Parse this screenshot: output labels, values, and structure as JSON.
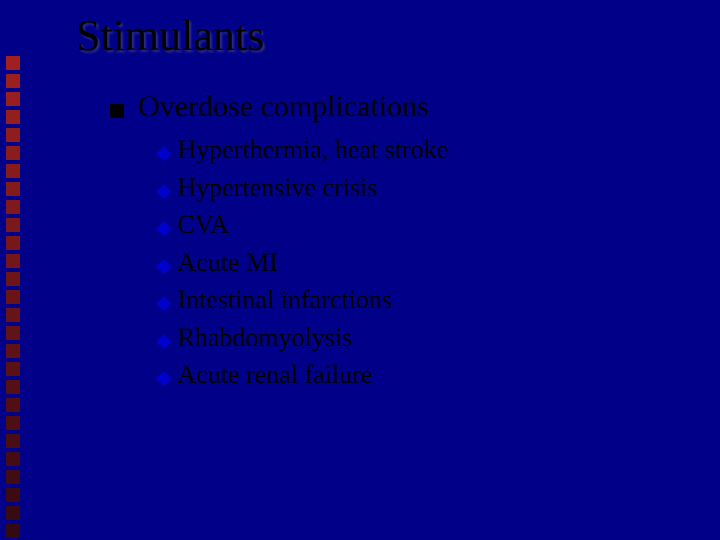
{
  "title": "Stimulants",
  "lvl1": {
    "text": "Overdose complications"
  },
  "items": [
    {
      "text": "Hyperthermia, heat stroke"
    },
    {
      "text": "Hypertensive crisis"
    },
    {
      "text": "CVA"
    },
    {
      "text": "Acute MI"
    },
    {
      "text": "Intestinal infarctions"
    },
    {
      "text": "Rhabdomyolysis"
    },
    {
      "text": "Acute renal failure"
    }
  ],
  "deco": {
    "count": 28,
    "color_top": "#a02020",
    "color_bottom": "#300810"
  },
  "colors": {
    "background": "#000088",
    "title": "#000000",
    "body_text": "#000000",
    "bullet_square": "#000000",
    "bullet_diamond": "#0000cc"
  },
  "fontsizes": {
    "title": 44,
    "lvl1": 30,
    "lvl2": 26
  }
}
